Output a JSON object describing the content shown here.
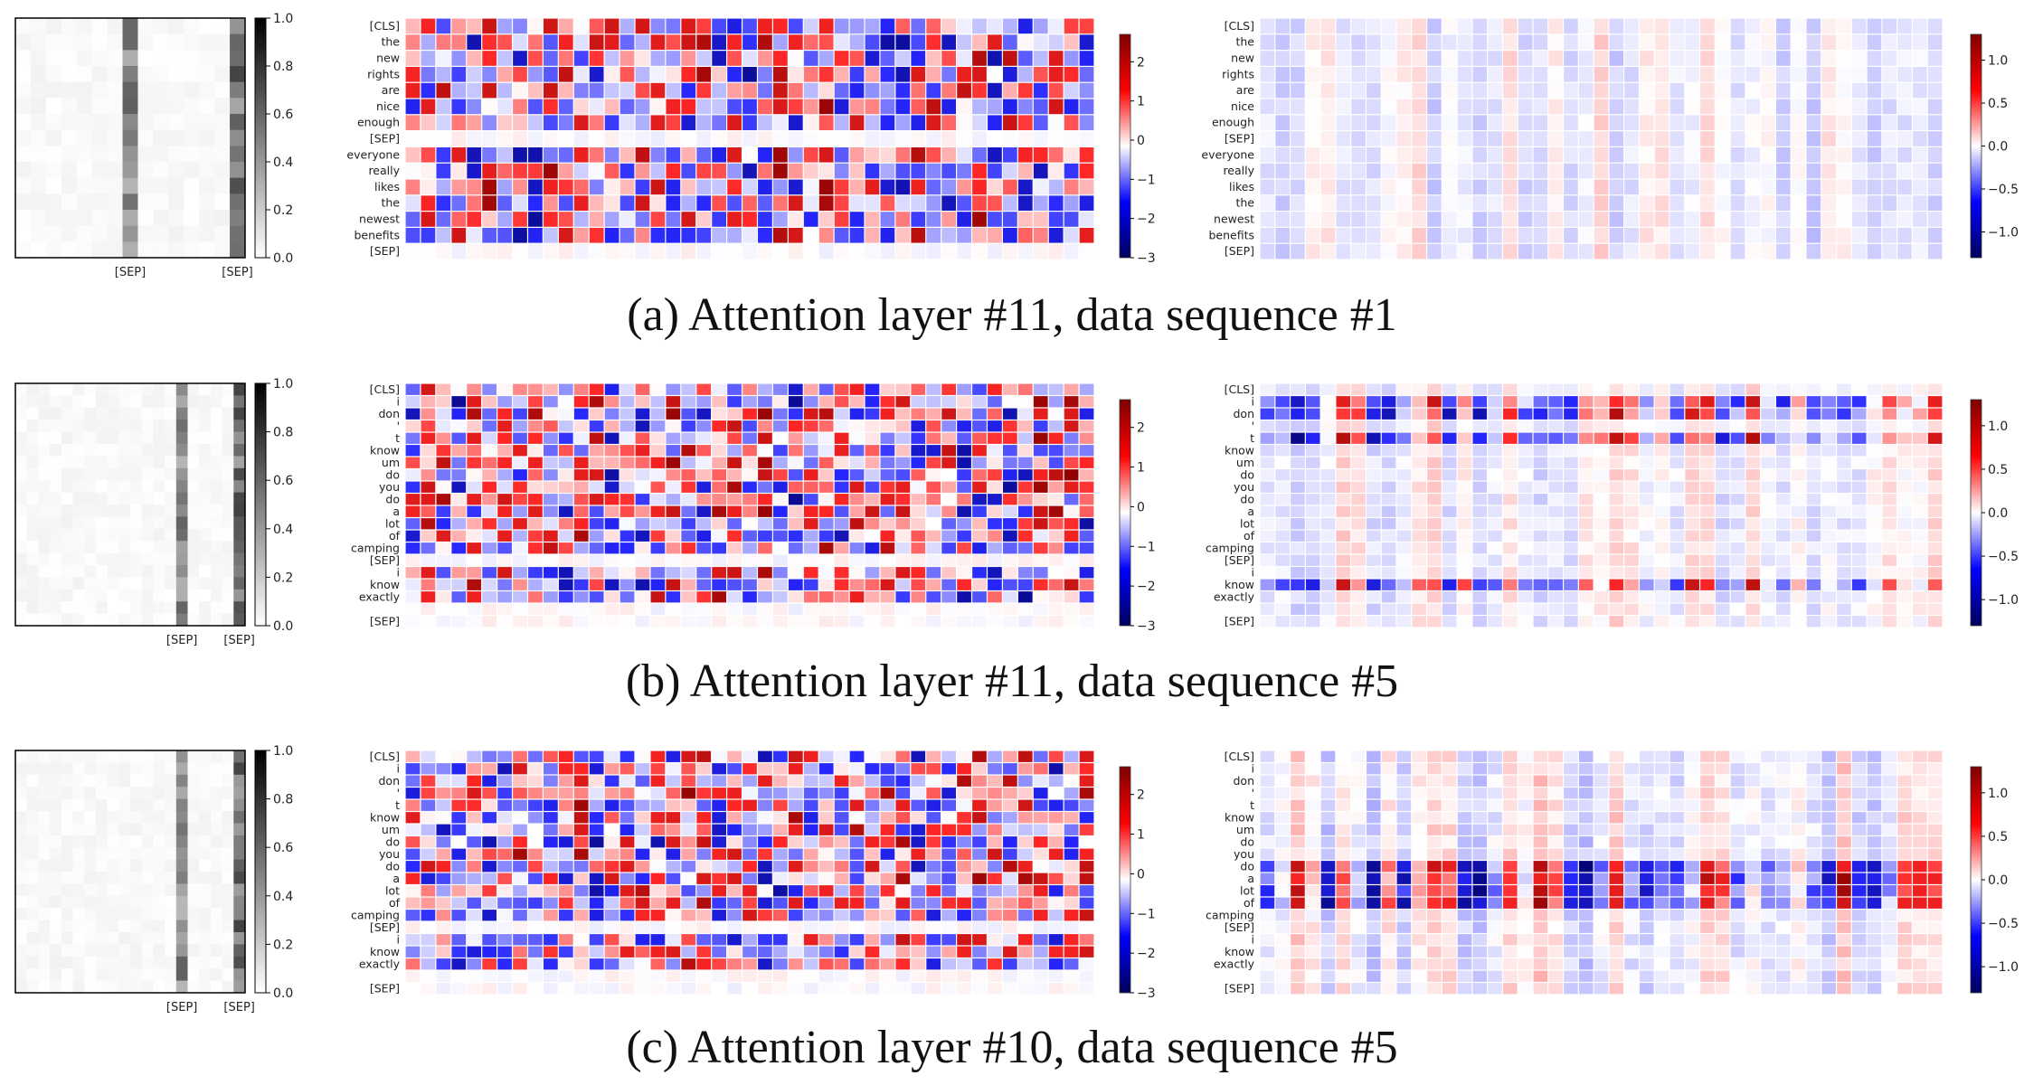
{
  "chart_data": [
    {
      "type": "heatmap",
      "caption": "(a) Attention layer #11, data sequence #1",
      "attention_map": {
        "colorbar_ticks": [
          "1.0",
          "0.8",
          "0.6",
          "0.4",
          "0.2",
          "0.0"
        ],
        "x_tick_labels": [
          "[SEP]",
          "[SEP]"
        ],
        "vmin": 0,
        "vmax": 1
      },
      "tokens": [
        "[CLS]",
        "the",
        "new",
        "rights",
        "are",
        "nice",
        "enough",
        "[SEP]",
        "everyone",
        "really",
        "likes",
        "the",
        "newest",
        "benefits",
        "[SEP]"
      ],
      "left_heatmap": {
        "colorbar_ticks": [
          "2",
          "1",
          "0",
          "−1",
          "−2",
          "−3"
        ],
        "vmin": -3,
        "vmax": 2.7
      },
      "right_heatmap": {
        "colorbar_ticks": [
          "1.0",
          "0.5",
          "0.0",
          "−0.5",
          "−1.0"
        ],
        "vmin": -1.3,
        "vmax": 1.3
      }
    },
    {
      "type": "heatmap",
      "caption": "(b) Attention layer #11, data sequence #5",
      "attention_map": {
        "colorbar_ticks": [
          "1.0",
          "0.8",
          "0.6",
          "0.4",
          "0.2",
          "0.0"
        ],
        "x_tick_labels": [
          "[SEP]",
          "[SEP]"
        ],
        "vmin": 0,
        "vmax": 1
      },
      "tokens": [
        "[CLS]",
        "i",
        "don",
        "'",
        "t",
        "know",
        "um",
        "do",
        "you",
        "do",
        "a",
        "lot",
        "of",
        "camping",
        "[SEP]",
        "i",
        "know",
        "exactly",
        "",
        "[SEP]"
      ],
      "left_heatmap": {
        "colorbar_ticks": [
          "2",
          "1",
          "0",
          "−1",
          "−2",
          "−3"
        ],
        "vmin": -3,
        "vmax": 2.7
      },
      "right_heatmap": {
        "colorbar_ticks": [
          "1.0",
          "0.5",
          "0.0",
          "−0.5",
          "−1.0"
        ],
        "vmin": -1.3,
        "vmax": 1.3
      }
    },
    {
      "type": "heatmap",
      "caption": "(c) Attention layer #10, data sequence #5",
      "attention_map": {
        "colorbar_ticks": [
          "1.0",
          "0.8",
          "0.6",
          "0.4",
          "0.2",
          "0.0"
        ],
        "x_tick_labels": [
          "[SEP]",
          "[SEP]"
        ],
        "vmin": 0,
        "vmax": 1
      },
      "tokens": [
        "[CLS]",
        "i",
        "don",
        "'",
        "t",
        "know",
        "um",
        "do",
        "you",
        "do",
        "a",
        "lot",
        "of",
        "camping",
        "[SEP]",
        "i",
        "know",
        "exactly",
        "",
        "[SEP]"
      ],
      "left_heatmap": {
        "colorbar_ticks": [
          "2",
          "1",
          "0",
          "−1",
          "−2",
          "−3"
        ],
        "vmin": -3,
        "vmax": 2.7
      },
      "right_heatmap": {
        "colorbar_ticks": [
          "1.0",
          "0.5",
          "0.0",
          "−0.5",
          "−1.0"
        ],
        "vmin": -1.3,
        "vmax": 1.3
      }
    }
  ],
  "colors": {
    "negative": "#000a8c",
    "neutral": "#ffffff",
    "positive": "#8c0000",
    "gray_max": "#000000"
  }
}
